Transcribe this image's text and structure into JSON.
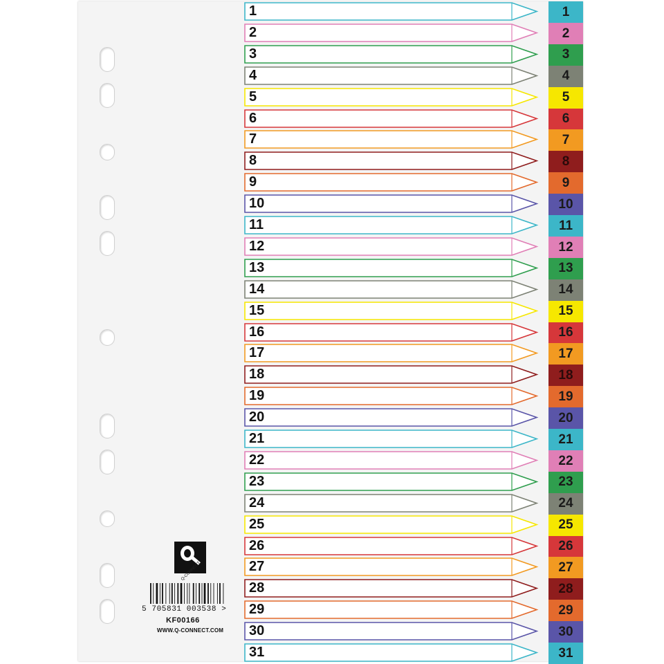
{
  "divider": {
    "colors": {
      "cyan": "#3cb6c8",
      "pink": "#e07fb6",
      "green": "#2f9e4e",
      "grey": "#7d8275",
      "yellow": "#f6e700",
      "red": "#d6373a",
      "orange": "#f29a21",
      "maroon": "#8f1d1d",
      "burnt-orange": "#e36a2d",
      "purple": "#5a55a8"
    },
    "color_cycle": [
      "cyan",
      "pink",
      "green",
      "grey",
      "yellow",
      "red",
      "orange",
      "maroon",
      "burnt-orange",
      "purple"
    ],
    "tabs": [
      "1",
      "2",
      "3",
      "4",
      "5",
      "6",
      "7",
      "8",
      "9",
      "10",
      "11",
      "12",
      "13",
      "14",
      "15",
      "16",
      "17",
      "18",
      "19",
      "20",
      "21",
      "22",
      "23",
      "24",
      "25",
      "26",
      "27",
      "28",
      "29",
      "30",
      "31"
    ],
    "punched_holes": 11
  },
  "brand": {
    "logo_icon": "q-connect-logo",
    "logo_text": "Q-CONNECT",
    "barcode_number": "5 705831 003538 >",
    "product_code": "KF00166",
    "website": "WWW.Q-CONNECT.COM"
  }
}
